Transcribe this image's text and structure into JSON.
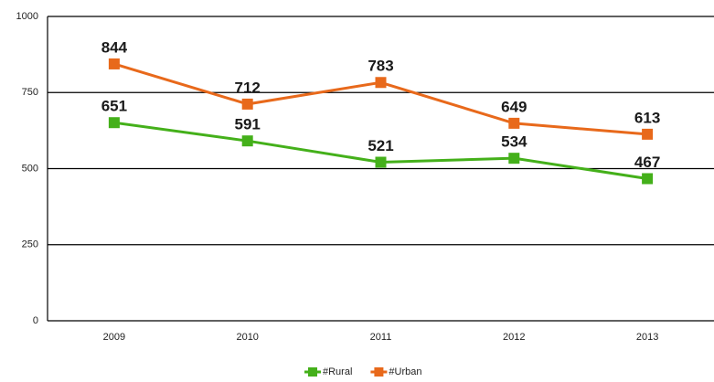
{
  "chart_data": {
    "type": "line",
    "categories": [
      "2009",
      "2010",
      "2011",
      "2012",
      "2013"
    ],
    "series": [
      {
        "name": "#Rural",
        "color": "#44b01a",
        "values": [
          651,
          591,
          521,
          534,
          467
        ]
      },
      {
        "name": "#Urban",
        "color": "#e8691b",
        "values": [
          844,
          712,
          783,
          649,
          613
        ]
      }
    ],
    "ylim": [
      0,
      1000
    ],
    "yticks": [
      0,
      250,
      500,
      750,
      1000
    ],
    "grid": true,
    "legend": "bottom"
  }
}
